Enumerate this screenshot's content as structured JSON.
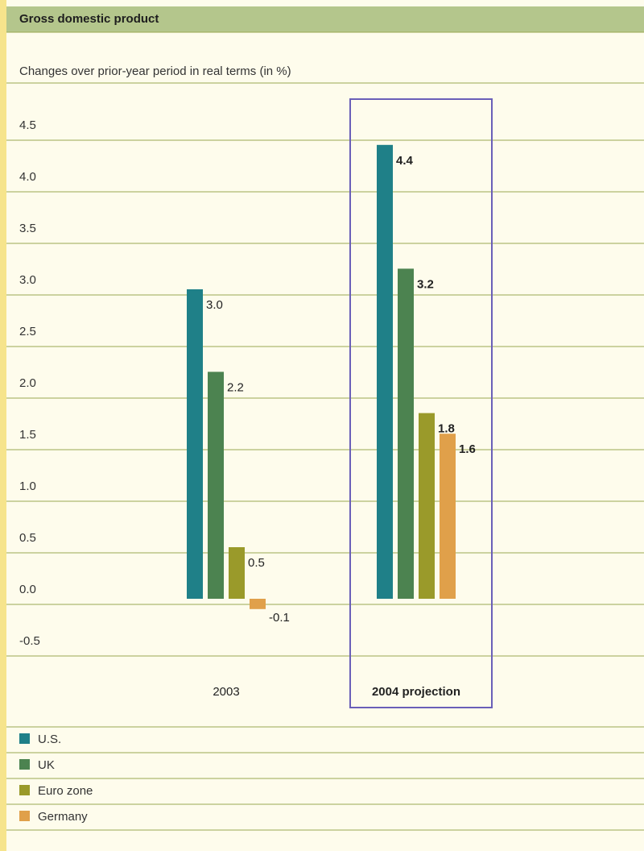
{
  "header": {
    "title": "Gross domestic product"
  },
  "chart_data": {
    "type": "bar",
    "title": "Gross domestic product",
    "subtitle": "Changes over prior-year period in real terms (in %)",
    "categories": [
      "2003",
      "2004 projection"
    ],
    "series": [
      {
        "name": "U.S.",
        "color": "#1f8088",
        "values": [
          3.0,
          4.4
        ]
      },
      {
        "name": "UK",
        "color": "#4c8350",
        "values": [
          2.2,
          3.2
        ]
      },
      {
        "name": "Euro zone",
        "color": "#9a9a2a",
        "values": [
          0.5,
          1.8
        ]
      },
      {
        "name": "Germany",
        "color": "#e0a04a",
        "values": [
          -0.1,
          1.6
        ]
      }
    ],
    "y_ticks": [
      "4.5",
      "4.0",
      "3.5",
      "3.0",
      "2.5",
      "2.0",
      "1.5",
      "1.0",
      "0.5",
      "0.0",
      "-0.5"
    ],
    "ylim": [
      -0.5,
      4.5
    ],
    "highlighted_category": "2004 projection",
    "grid": true,
    "legend_position": "bottom-left"
  },
  "legend": [
    {
      "label": "U.S.",
      "color": "#1f8088"
    },
    {
      "label": "UK",
      "color": "#4c8350"
    },
    {
      "label": "Euro zone",
      "color": "#9a9a2a"
    },
    {
      "label": "Germany",
      "color": "#e0a04a"
    }
  ]
}
